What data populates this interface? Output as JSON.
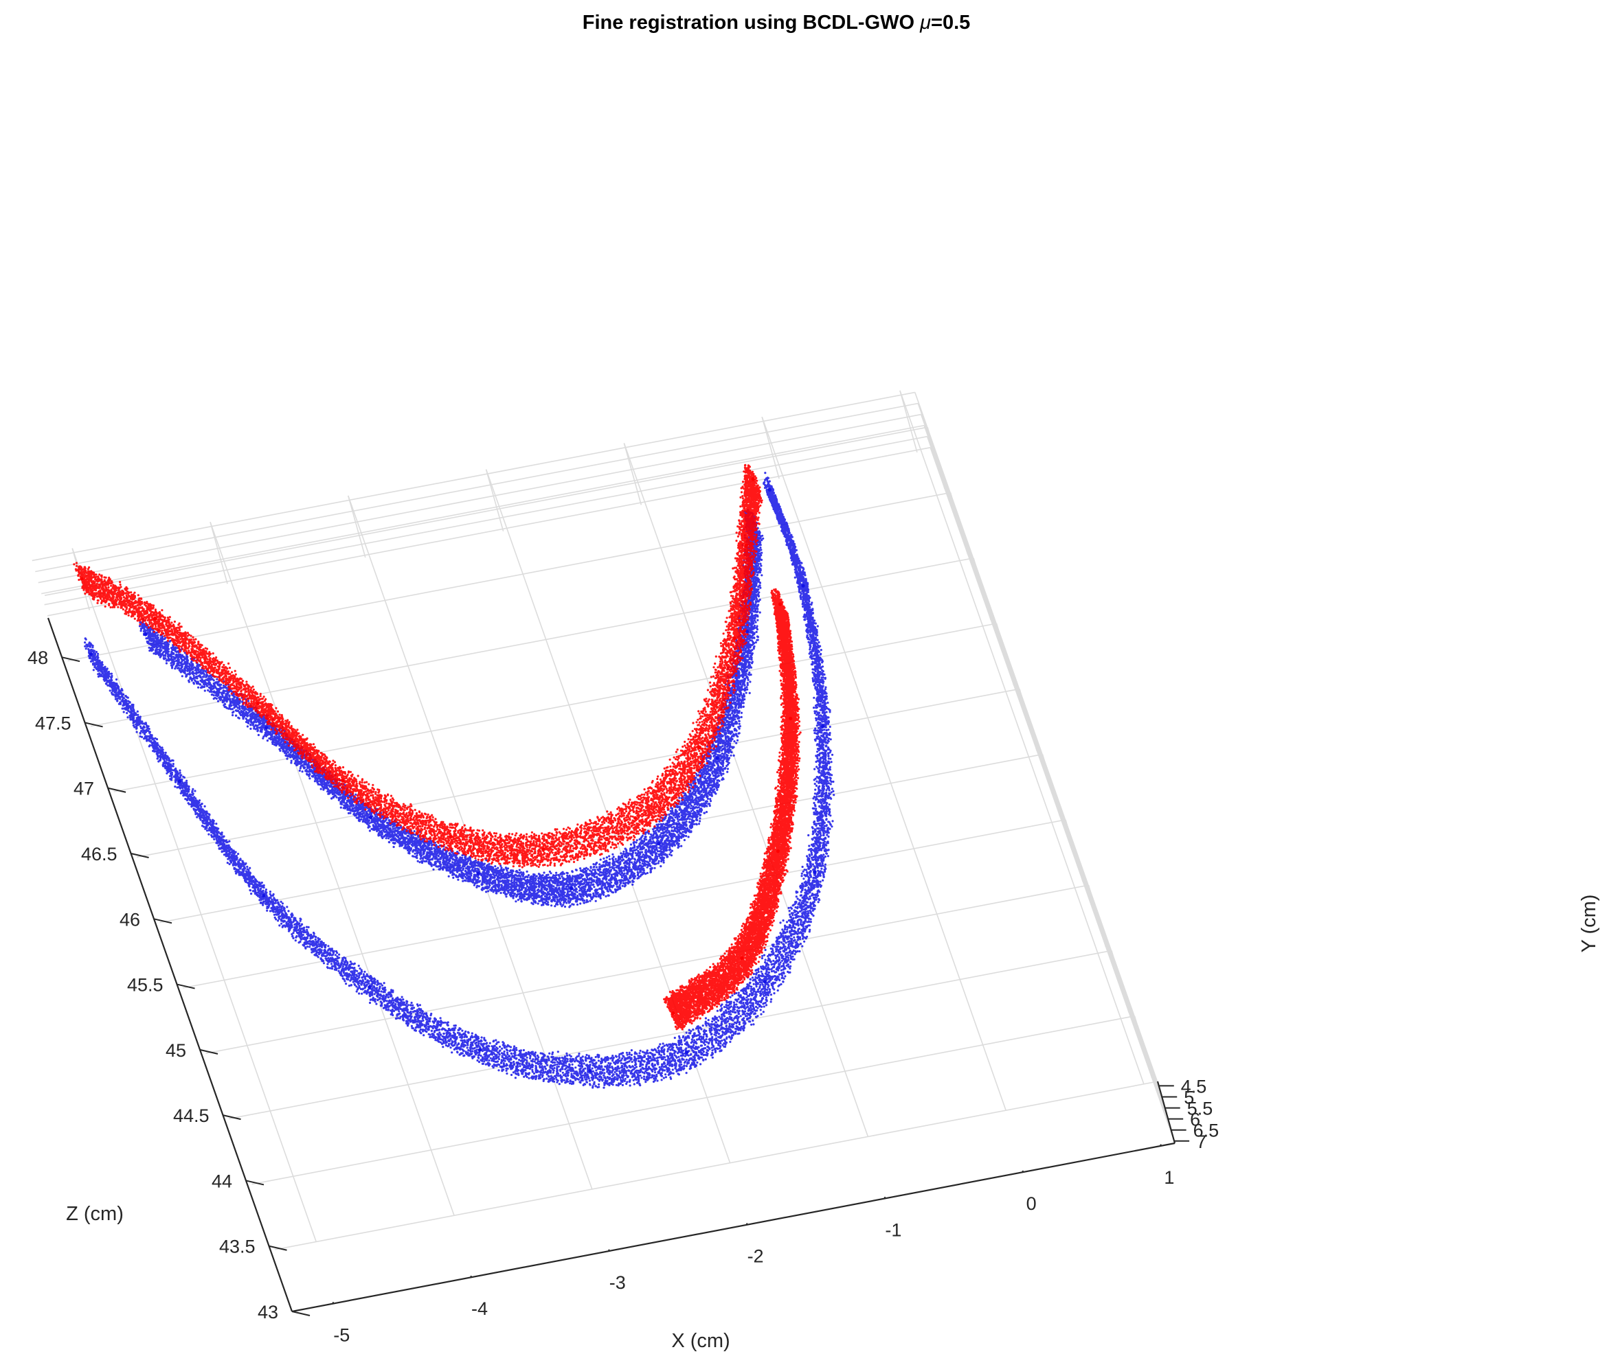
{
  "chart_data": {
    "type": "scatter",
    "projection": "3d",
    "title": "Fine registration using BCDL-GWO μ=0.5",
    "xlabel": "X (cm)",
    "ylabel": "Y (cm)",
    "zlabel": "Z (cm)",
    "xlim": [
      -5.3,
      1.1
    ],
    "ylim": [
      4.3,
      7.1
    ],
    "zlim": [
      43,
      48.3
    ],
    "y_direction": "reverse",
    "grid": true,
    "legend": "none",
    "x_ticks": [
      "-5",
      "-4",
      "-3",
      "-2",
      "-1",
      "0",
      "1"
    ],
    "y_ticks": [
      "4.5",
      "5",
      "5.5",
      "6",
      "6.5",
      "7"
    ],
    "z_ticks": [
      "43",
      "43.5",
      "44",
      "44.5",
      "45",
      "45.5",
      "46",
      "46.5",
      "47",
      "47.5",
      "48"
    ],
    "series": [
      {
        "color": "#1414e6",
        "points": [
          [
            -5.1,
            6.6,
            47.9
          ],
          [
            -4.8,
            6.8,
            46.9
          ],
          [
            -4.5,
            7.0,
            46.0
          ],
          [
            -4.0,
            7.0,
            45.2
          ],
          [
            -3.4,
            7.0,
            44.6
          ],
          [
            -2.7,
            7.0,
            44.3
          ],
          [
            -2.0,
            7.0,
            44.3
          ],
          [
            -1.3,
            7.0,
            44.7
          ],
          [
            -0.7,
            6.9,
            45.4
          ],
          [
            -0.3,
            6.7,
            46.4
          ],
          [
            -0.1,
            6.5,
            47.4
          ],
          [
            -0.1,
            6.3,
            48.1
          ],
          [
            -4.7,
            5.0,
            47.7
          ],
          [
            -4.1,
            5.2,
            46.9
          ],
          [
            -3.6,
            5.7,
            46.2
          ],
          [
            -3.0,
            6.0,
            45.7
          ],
          [
            -2.4,
            6.2,
            45.5
          ],
          [
            -1.7,
            6.2,
            45.7
          ],
          [
            -1.1,
            6.0,
            46.2
          ],
          [
            -0.6,
            5.6,
            47.0
          ],
          [
            -0.3,
            5.2,
            47.7
          ]
        ]
      },
      {
        "color": "#ff0000",
        "points": [
          [
            -5.0,
            5.1,
            48.2
          ],
          [
            -4.6,
            5.0,
            47.8
          ],
          [
            -4.1,
            5.3,
            47.1
          ],
          [
            -3.7,
            5.7,
            46.5
          ],
          [
            -3.1,
            6.0,
            46.0
          ],
          [
            -2.5,
            6.1,
            45.8
          ],
          [
            -1.8,
            6.1,
            45.9
          ],
          [
            -1.2,
            6.0,
            46.3
          ],
          [
            -0.7,
            5.8,
            47.0
          ],
          [
            -0.4,
            5.5,
            47.6
          ],
          [
            -0.2,
            5.1,
            48.0
          ],
          [
            -2.0,
            7.0,
            44.6
          ],
          [
            -1.4,
            7.0,
            44.9
          ],
          [
            -0.9,
            6.9,
            45.6
          ],
          [
            -0.5,
            6.7,
            46.5
          ],
          [
            -0.3,
            6.5,
            47.3
          ]
        ]
      }
    ]
  }
}
